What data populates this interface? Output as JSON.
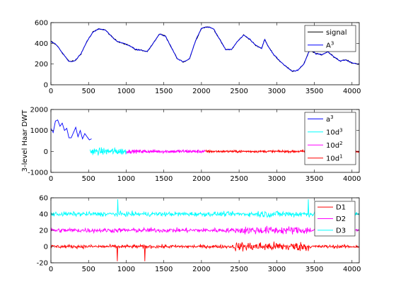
{
  "chart_data": [
    {
      "type": "line",
      "xlim": [
        0,
        4096
      ],
      "ylim": [
        0,
        600
      ],
      "xticks": [
        0,
        500,
        1000,
        1500,
        2000,
        2500,
        3000,
        3500,
        4000
      ],
      "yticks": [
        0,
        200,
        400,
        600
      ],
      "ylabel": "",
      "legend_position": "top-right",
      "series": [
        {
          "name": "signal",
          "color": "#000000",
          "x": [
            0,
            80,
            160,
            240,
            320,
            400,
            480,
            560,
            640,
            720,
            800,
            880,
            960,
            1040,
            1120,
            1200,
            1280,
            1360,
            1440,
            1520,
            1600,
            1680,
            1760,
            1840,
            1920,
            2000,
            2080,
            2160,
            2240,
            2320,
            2400,
            2480,
            2560,
            2640,
            2720,
            2800,
            2840,
            2880,
            2960,
            3040,
            3120,
            3200,
            3280,
            3360,
            3440,
            3520,
            3600,
            3680,
            3760,
            3840,
            3920,
            4000,
            4096
          ],
          "y": [
            420,
            380,
            300,
            225,
            230,
            300,
            420,
            510,
            540,
            530,
            470,
            420,
            400,
            380,
            340,
            335,
            320,
            400,
            490,
            470,
            360,
            250,
            220,
            250,
            420,
            545,
            560,
            540,
            440,
            340,
            340,
            420,
            480,
            440,
            380,
            350,
            440,
            380,
            290,
            230,
            180,
            130,
            140,
            200,
            340,
            300,
            290,
            320,
            270,
            230,
            240,
            210,
            200
          ]
        },
        {
          "name": "A³",
          "color": "#0000ff",
          "x": [
            0,
            80,
            160,
            240,
            320,
            400,
            480,
            560,
            640,
            720,
            800,
            880,
            960,
            1040,
            1120,
            1200,
            1280,
            1360,
            1440,
            1520,
            1600,
            1680,
            1760,
            1840,
            1920,
            2000,
            2080,
            2160,
            2240,
            2320,
            2400,
            2480,
            2560,
            2640,
            2720,
            2800,
            2840,
            2880,
            2960,
            3040,
            3120,
            3200,
            3280,
            3360,
            3440,
            3520,
            3600,
            3680,
            3760,
            3840,
            3920,
            4000,
            4096
          ],
          "y": [
            420,
            380,
            300,
            225,
            230,
            300,
            420,
            510,
            540,
            530,
            470,
            420,
            400,
            380,
            340,
            335,
            320,
            400,
            490,
            470,
            360,
            250,
            220,
            250,
            420,
            545,
            560,
            540,
            440,
            340,
            340,
            420,
            480,
            440,
            380,
            350,
            440,
            380,
            290,
            230,
            180,
            130,
            140,
            200,
            340,
            300,
            290,
            320,
            270,
            230,
            240,
            210,
            200
          ]
        }
      ]
    },
    {
      "type": "line",
      "xlim": [
        0,
        4096
      ],
      "ylim": [
        -1000,
        2000
      ],
      "xticks": [
        0,
        500,
        1000,
        1500,
        2000,
        2500,
        3000,
        3500,
        4000
      ],
      "yticks": [
        -1000,
        0,
        1000,
        2000
      ],
      "ylabel": "3-level Haar DWT",
      "legend_position": "top-right",
      "series": [
        {
          "name": "a³",
          "color": "#0000ff",
          "x": [
            0,
            30,
            60,
            90,
            120,
            150,
            180,
            210,
            240,
            270,
            300,
            330,
            360,
            390,
            420,
            450,
            480,
            510,
            540
          ],
          "y": [
            1100,
            900,
            1450,
            1500,
            1200,
            1350,
            1000,
            1100,
            650,
            650,
            900,
            1150,
            700,
            1000,
            600,
            850,
            700,
            550,
            600
          ]
        },
        {
          "name": "10d³",
          "color": "#00ffff",
          "x": [
            520,
            560,
            600,
            640,
            680,
            720,
            760,
            800,
            840,
            880,
            920,
            960,
            1000
          ],
          "y": [
            0,
            0,
            0,
            0,
            0,
            0,
            0,
            0,
            0,
            0,
            0,
            0,
            0
          ],
          "noise": 120
        },
        {
          "name": "10d²",
          "color": "#ff00ff",
          "x": [
            1000,
            1100,
            1200,
            1300,
            1400,
            1500,
            1600,
            1700,
            1800,
            1900,
            2000,
            2050
          ],
          "y": [
            0,
            0,
            0,
            0,
            0,
            0,
            0,
            0,
            0,
            0,
            0,
            0
          ],
          "noise": 60
        },
        {
          "name": "10d¹",
          "color": "#ff0000",
          "x": [
            2050,
            2500,
            3000,
            3500,
            4096
          ],
          "y": [
            0,
            0,
            0,
            0,
            0
          ],
          "noise": 40
        }
      ]
    },
    {
      "type": "line",
      "xlim": [
        0,
        4096
      ],
      "ylim": [
        -20,
        60
      ],
      "xticks": [
        0,
        500,
        1000,
        1500,
        2000,
        2500,
        3000,
        3500,
        4000
      ],
      "yticks": [
        -20,
        0,
        20,
        40,
        60
      ],
      "ylabel": "",
      "legend_position": "top-right",
      "series": [
        {
          "name": "D1",
          "color": "#ff0000",
          "offset": 0,
          "noise": 1.5
        },
        {
          "name": "D2",
          "color": "#ff00ff",
          "offset": 20,
          "noise": 2
        },
        {
          "name": "D3",
          "color": "#00ffff",
          "offset": 40,
          "noise": 2
        }
      ]
    }
  ]
}
